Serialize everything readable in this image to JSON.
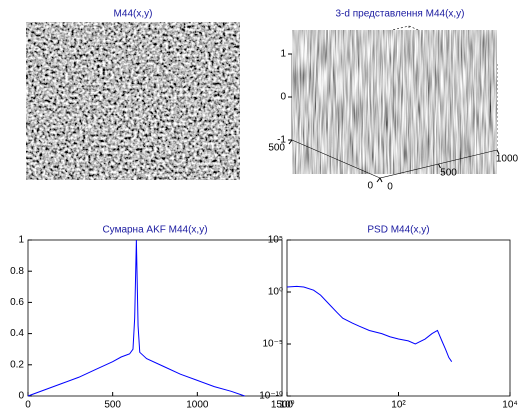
{
  "chart_data": [
    {
      "type": "image",
      "title": "M44(x,y)"
    },
    {
      "type": "surface",
      "title": "3-d представлення M44(x,y)",
      "xlim": [
        0,
        1000
      ],
      "ylim": [
        0,
        500
      ],
      "zlim": [
        -1,
        1
      ],
      "xticks": [
        0,
        500,
        1000
      ],
      "yticks": [
        0,
        500
      ],
      "zticks": [
        -1,
        0,
        1
      ]
    },
    {
      "type": "line",
      "title": "Сумарна AKF M44(x,y)",
      "x": [
        0,
        100,
        200,
        300,
        400,
        500,
        550,
        600,
        620,
        630,
        640,
        650,
        660,
        680,
        700,
        800,
        900,
        1000,
        1100,
        1200,
        1280
      ],
      "series": [
        {
          "color": "#0000ff",
          "values": [
            0,
            0.04,
            0.08,
            0.12,
            0.17,
            0.22,
            0.25,
            0.27,
            0.3,
            0.5,
            1,
            0.45,
            0.28,
            0.26,
            0.24,
            0.19,
            0.14,
            0.1,
            0.06,
            0.03,
            0
          ]
        }
      ],
      "xlim": [
        0,
        1500
      ],
      "ylim": [
        0,
        1
      ],
      "xticks": [
        0,
        500,
        1000,
        1500
      ],
      "yticks": [
        0,
        0.2,
        0.4,
        0.6,
        0.8,
        1
      ]
    },
    {
      "type": "line",
      "title": "PSD M44(x,y)",
      "log_x": true,
      "log_y": true,
      "x": [
        1,
        1.5,
        2,
        3,
        4,
        6,
        8,
        10,
        15,
        20,
        30,
        50,
        70,
        100,
        150,
        200,
        300,
        400,
        500,
        600,
        700,
        800,
        900
      ],
      "series": [
        {
          "color": "#0000ff",
          "values": [
            3,
            3.5,
            3,
            1.5,
            0.5,
            0.05,
            0.01,
            0.003,
            0.001,
            0.0005,
            0.0002,
            0.0001,
            5e-05,
            3e-05,
            2e-05,
            1e-05,
            3e-05,
            0.0001,
            0.0002,
            2e-05,
            3e-06,
            5e-07,
            2e-07
          ]
        }
      ],
      "xlim": [
        1,
        10000
      ],
      "ylim": [
        1e-10,
        100000
      ],
      "xticks": [
        {
          "value": 1,
          "label": "10⁰"
        },
        {
          "value": 100,
          "label": "10²"
        },
        {
          "value": 10000,
          "label": "10⁴"
        }
      ],
      "yticks": [
        {
          "value": 1e-10,
          "label": "10⁻¹⁰"
        },
        {
          "value": 1e-05,
          "label": "10⁻⁵"
        },
        {
          "value": 1,
          "label": "10⁰"
        },
        {
          "value": 100000,
          "label": "10⁵"
        }
      ]
    }
  ]
}
